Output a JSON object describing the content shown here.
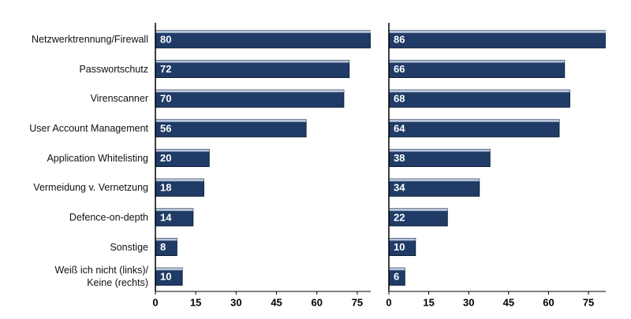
{
  "chart_data": [
    {
      "type": "bar",
      "orientation": "horizontal",
      "categories": [
        "Netzwerktrennung/Firewall",
        "Passwortschutz",
        "Virenscanner",
        "User Account  Management",
        "Application  Whitelisting",
        "Vermeidung  v. Vernetzung",
        "Defence-on-depth",
        "Sonstige",
        "Weiß ich nicht (links)/\nKeine (rechts)"
      ],
      "series": [
        {
          "color": "#1f3b66",
          "values": [
            80,
            72,
            70,
            56,
            20,
            18,
            14,
            8,
            10
          ]
        }
      ],
      "xlim": [
        0,
        80
      ],
      "xticks": [
        0,
        15,
        30,
        45,
        60,
        75
      ]
    },
    {
      "type": "bar",
      "orientation": "horizontal",
      "series": [
        {
          "color": "#1f3b66",
          "values": [
            86,
            66,
            68,
            64,
            38,
            34,
            22,
            10,
            6
          ]
        }
      ],
      "xlim": [
        0,
        81.5
      ],
      "xticks": [
        0,
        15,
        30,
        45,
        60,
        75
      ]
    }
  ]
}
